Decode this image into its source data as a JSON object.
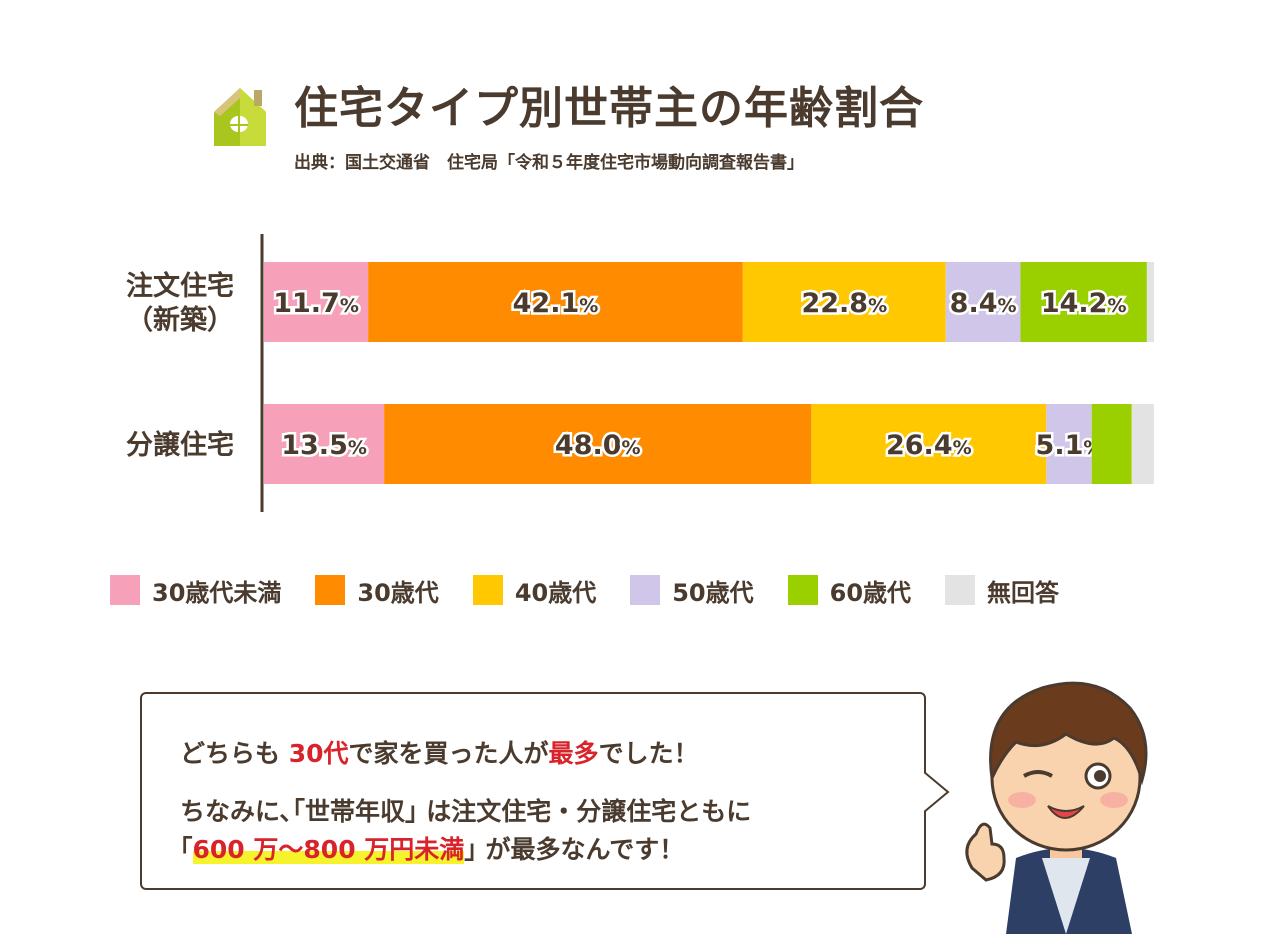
{
  "header": {
    "title": "住宅タイプ別世帯主の年齢割合",
    "source": "出典：国土交通省　住宅局「令和５年度住宅市場動向調査報告書」"
  },
  "chart_data": {
    "type": "bar",
    "orientation": "horizontal",
    "stacked": true,
    "percent": true,
    "title": "住宅タイプ別世帯主の年齢割合",
    "categories": [
      "注文住宅（新築）",
      "分譲住宅"
    ],
    "category_lines": [
      [
        "注文住宅",
        "（新築）"
      ],
      [
        "分譲住宅"
      ]
    ],
    "series": [
      {
        "name": "30歳代未満",
        "color": "#f6a0b9",
        "values": [
          11.7,
          13.5
        ],
        "labels": [
          "11.7%",
          "13.5%"
        ]
      },
      {
        "name": "30歳代",
        "color": "#ff8c00",
        "values": [
          42.1,
          48.0
        ],
        "labels": [
          "42.1%",
          "48.0%"
        ]
      },
      {
        "name": "40歳代",
        "color": "#ffc800",
        "values": [
          22.8,
          26.4
        ],
        "labels": [
          "22.8%",
          "26.4%"
        ]
      },
      {
        "name": "50歳代",
        "color": "#cfc6ea",
        "values": [
          8.4,
          5.1
        ],
        "labels": [
          "8.4%",
          "5.1%"
        ]
      },
      {
        "name": "60歳代",
        "color": "#9bd000",
        "values": [
          14.2,
          4.5
        ],
        "labels": [
          "14.2%",
          ""
        ]
      },
      {
        "name": "無回答",
        "color": "#e3e3e3",
        "values": [
          0.8,
          2.5
        ],
        "labels": [
          "",
          ""
        ]
      }
    ],
    "xlim": [
      0,
      100
    ],
    "grid": false,
    "legend_position": "bottom"
  },
  "legend": [
    {
      "label": "30歳代未満",
      "color": "#f6a0b9"
    },
    {
      "label": "30歳代",
      "color": "#ff8c00"
    },
    {
      "label": "40歳代",
      "color": "#ffc800"
    },
    {
      "label": "50歳代",
      "color": "#cfc6ea"
    },
    {
      "label": "60歳代",
      "color": "#9bd000"
    },
    {
      "label": "無回答",
      "color": "#e3e3e3"
    }
  ],
  "bubble": {
    "line1_a": "どちらも",
    "line1_b": "30代",
    "line1_c": "で家を買った人が",
    "line1_d": "最多",
    "line1_e": "でした！",
    "line2": "ちなみに､｢世帯年収｣ は注文住宅・分譲住宅ともに",
    "line3_open": "｢",
    "line3_hl": "600 万～800 万円未満",
    "line3_close": "｣ が最多なんです！"
  },
  "colors": {
    "text": "#4a3b2e",
    "accent": "#d9232b",
    "highlight": "#f6f22c"
  }
}
